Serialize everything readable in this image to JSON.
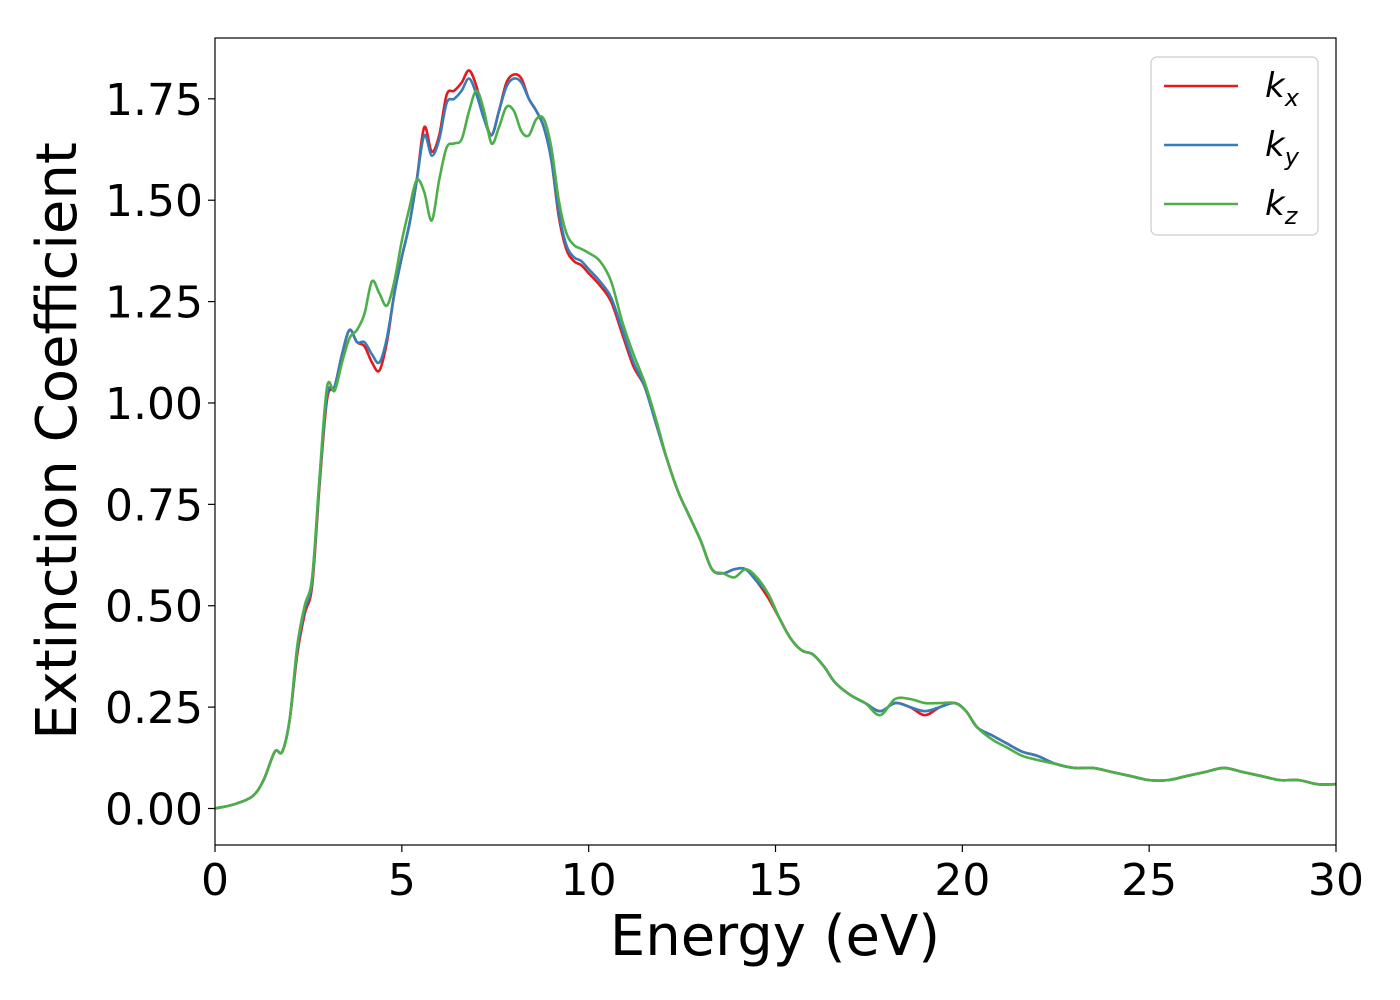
{
  "chart_data": {
    "type": "line",
    "title": "",
    "xlabel": "Energy (eV)",
    "ylabel": "Extinction Coefficient",
    "xlim": [
      0,
      30
    ],
    "ylim": [
      -0.09,
      1.9
    ],
    "xticks": [
      0,
      5,
      10,
      15,
      20,
      25,
      30
    ],
    "xtick_labels": [
      "0",
      "5",
      "10",
      "15",
      "20",
      "25",
      "30"
    ],
    "yticks": [
      0.0,
      0.25,
      0.5,
      0.75,
      1.0,
      1.25,
      1.5,
      1.75
    ],
    "ytick_labels": [
      "0.00",
      "0.25",
      "0.50",
      "0.75",
      "1.00",
      "1.25",
      "1.50",
      "1.75"
    ],
    "grid": false,
    "legend_position": "top-right",
    "series": [
      {
        "name": "k_x",
        "legend_base": "k",
        "legend_sub": "x",
        "color": "#e41a1c",
        "points": [
          [
            0,
            0.0
          ],
          [
            0.5,
            0.01
          ],
          [
            1.0,
            0.03
          ],
          [
            1.3,
            0.07
          ],
          [
            1.6,
            0.14
          ],
          [
            1.8,
            0.14
          ],
          [
            2.0,
            0.22
          ],
          [
            2.2,
            0.38
          ],
          [
            2.4,
            0.48
          ],
          [
            2.6,
            0.55
          ],
          [
            2.8,
            0.8
          ],
          [
            3.0,
            1.01
          ],
          [
            3.2,
            1.04
          ],
          [
            3.4,
            1.12
          ],
          [
            3.6,
            1.18
          ],
          [
            3.8,
            1.15
          ],
          [
            4.0,
            1.14
          ],
          [
            4.2,
            1.1
          ],
          [
            4.4,
            1.08
          ],
          [
            4.6,
            1.15
          ],
          [
            4.8,
            1.27
          ],
          [
            5.0,
            1.36
          ],
          [
            5.2,
            1.44
          ],
          [
            5.4,
            1.55
          ],
          [
            5.6,
            1.68
          ],
          [
            5.8,
            1.62
          ],
          [
            6.0,
            1.66
          ],
          [
            6.2,
            1.76
          ],
          [
            6.4,
            1.77
          ],
          [
            6.6,
            1.79
          ],
          [
            6.8,
            1.82
          ],
          [
            7.0,
            1.78
          ],
          [
            7.2,
            1.71
          ],
          [
            7.4,
            1.66
          ],
          [
            7.6,
            1.72
          ],
          [
            7.8,
            1.79
          ],
          [
            8.0,
            1.81
          ],
          [
            8.2,
            1.8
          ],
          [
            8.4,
            1.75
          ],
          [
            8.6,
            1.72
          ],
          [
            8.8,
            1.68
          ],
          [
            9.0,
            1.6
          ],
          [
            9.2,
            1.46
          ],
          [
            9.4,
            1.38
          ],
          [
            9.6,
            1.35
          ],
          [
            9.8,
            1.34
          ],
          [
            10.0,
            1.32
          ],
          [
            10.3,
            1.29
          ],
          [
            10.6,
            1.25
          ],
          [
            10.9,
            1.17
          ],
          [
            11.2,
            1.09
          ],
          [
            11.5,
            1.04
          ],
          [
            11.8,
            0.95
          ],
          [
            12.1,
            0.86
          ],
          [
            12.4,
            0.78
          ],
          [
            12.7,
            0.72
          ],
          [
            13.0,
            0.66
          ],
          [
            13.3,
            0.59
          ],
          [
            13.6,
            0.58
          ],
          [
            13.9,
            0.59
          ],
          [
            14.2,
            0.59
          ],
          [
            14.5,
            0.56
          ],
          [
            14.8,
            0.52
          ],
          [
            15.1,
            0.47
          ],
          [
            15.4,
            0.42
          ],
          [
            15.7,
            0.39
          ],
          [
            16.0,
            0.38
          ],
          [
            16.3,
            0.35
          ],
          [
            16.6,
            0.31
          ],
          [
            17.0,
            0.28
          ],
          [
            17.4,
            0.26
          ],
          [
            17.8,
            0.24
          ],
          [
            18.2,
            0.26
          ],
          [
            18.6,
            0.25
          ],
          [
            19.0,
            0.23
          ],
          [
            19.4,
            0.25
          ],
          [
            19.8,
            0.26
          ],
          [
            20.1,
            0.24
          ],
          [
            20.4,
            0.2
          ],
          [
            20.8,
            0.18
          ],
          [
            21.2,
            0.16
          ],
          [
            21.6,
            0.14
          ],
          [
            22.0,
            0.13
          ],
          [
            22.5,
            0.11
          ],
          [
            23.0,
            0.1
          ],
          [
            23.5,
            0.1
          ],
          [
            24.0,
            0.09
          ],
          [
            24.5,
            0.08
          ],
          [
            25.0,
            0.07
          ],
          [
            25.5,
            0.07
          ],
          [
            26.0,
            0.08
          ],
          [
            26.5,
            0.09
          ],
          [
            27.0,
            0.1
          ],
          [
            27.5,
            0.09
          ],
          [
            28.0,
            0.08
          ],
          [
            28.5,
            0.07
          ],
          [
            29.0,
            0.07
          ],
          [
            29.5,
            0.06
          ],
          [
            30.0,
            0.06
          ]
        ]
      },
      {
        "name": "k_y",
        "legend_base": "k",
        "legend_sub": "y",
        "color": "#377eb8",
        "points": [
          [
            0,
            0.0
          ],
          [
            0.5,
            0.01
          ],
          [
            1.0,
            0.03
          ],
          [
            1.3,
            0.07
          ],
          [
            1.6,
            0.14
          ],
          [
            1.8,
            0.14
          ],
          [
            2.0,
            0.22
          ],
          [
            2.2,
            0.39
          ],
          [
            2.4,
            0.49
          ],
          [
            2.6,
            0.56
          ],
          [
            2.8,
            0.81
          ],
          [
            3.0,
            1.02
          ],
          [
            3.2,
            1.04
          ],
          [
            3.4,
            1.12
          ],
          [
            3.6,
            1.18
          ],
          [
            3.8,
            1.15
          ],
          [
            4.0,
            1.15
          ],
          [
            4.2,
            1.12
          ],
          [
            4.4,
            1.1
          ],
          [
            4.6,
            1.16
          ],
          [
            4.8,
            1.27
          ],
          [
            5.0,
            1.36
          ],
          [
            5.2,
            1.44
          ],
          [
            5.4,
            1.55
          ],
          [
            5.6,
            1.66
          ],
          [
            5.8,
            1.61
          ],
          [
            6.0,
            1.65
          ],
          [
            6.2,
            1.74
          ],
          [
            6.4,
            1.75
          ],
          [
            6.6,
            1.77
          ],
          [
            6.8,
            1.8
          ],
          [
            7.0,
            1.76
          ],
          [
            7.2,
            1.7
          ],
          [
            7.4,
            1.66
          ],
          [
            7.6,
            1.72
          ],
          [
            7.8,
            1.78
          ],
          [
            8.0,
            1.8
          ],
          [
            8.2,
            1.79
          ],
          [
            8.4,
            1.75
          ],
          [
            8.6,
            1.72
          ],
          [
            8.8,
            1.68
          ],
          [
            9.0,
            1.6
          ],
          [
            9.2,
            1.47
          ],
          [
            9.4,
            1.39
          ],
          [
            9.6,
            1.36
          ],
          [
            9.8,
            1.35
          ],
          [
            10.0,
            1.33
          ],
          [
            10.3,
            1.3
          ],
          [
            10.6,
            1.26
          ],
          [
            10.9,
            1.18
          ],
          [
            11.2,
            1.1
          ],
          [
            11.5,
            1.04
          ],
          [
            11.8,
            0.95
          ],
          [
            12.1,
            0.86
          ],
          [
            12.4,
            0.78
          ],
          [
            12.7,
            0.72
          ],
          [
            13.0,
            0.66
          ],
          [
            13.3,
            0.59
          ],
          [
            13.6,
            0.58
          ],
          [
            13.9,
            0.59
          ],
          [
            14.2,
            0.59
          ],
          [
            14.5,
            0.56
          ],
          [
            14.8,
            0.53
          ],
          [
            15.1,
            0.47
          ],
          [
            15.4,
            0.42
          ],
          [
            15.7,
            0.39
          ],
          [
            16.0,
            0.38
          ],
          [
            16.3,
            0.35
          ],
          [
            16.6,
            0.31
          ],
          [
            17.0,
            0.28
          ],
          [
            17.4,
            0.26
          ],
          [
            17.8,
            0.24
          ],
          [
            18.2,
            0.26
          ],
          [
            18.6,
            0.25
          ],
          [
            19.0,
            0.24
          ],
          [
            19.4,
            0.25
          ],
          [
            19.8,
            0.26
          ],
          [
            20.1,
            0.24
          ],
          [
            20.4,
            0.2
          ],
          [
            20.8,
            0.18
          ],
          [
            21.2,
            0.16
          ],
          [
            21.6,
            0.14
          ],
          [
            22.0,
            0.13
          ],
          [
            22.5,
            0.11
          ],
          [
            23.0,
            0.1
          ],
          [
            23.5,
            0.1
          ],
          [
            24.0,
            0.09
          ],
          [
            24.5,
            0.08
          ],
          [
            25.0,
            0.07
          ],
          [
            25.5,
            0.07
          ],
          [
            26.0,
            0.08
          ],
          [
            26.5,
            0.09
          ],
          [
            27.0,
            0.1
          ],
          [
            27.5,
            0.09
          ],
          [
            28.0,
            0.08
          ],
          [
            28.5,
            0.07
          ],
          [
            29.0,
            0.07
          ],
          [
            29.5,
            0.06
          ],
          [
            30.0,
            0.06
          ]
        ]
      },
      {
        "name": "k_z",
        "legend_base": "k",
        "legend_sub": "z",
        "color": "#4daf4a",
        "points": [
          [
            0,
            0.0
          ],
          [
            0.5,
            0.01
          ],
          [
            1.0,
            0.03
          ],
          [
            1.3,
            0.07
          ],
          [
            1.6,
            0.14
          ],
          [
            1.8,
            0.14
          ],
          [
            2.0,
            0.22
          ],
          [
            2.2,
            0.4
          ],
          [
            2.4,
            0.5
          ],
          [
            2.6,
            0.57
          ],
          [
            2.8,
            0.82
          ],
          [
            3.0,
            1.04
          ],
          [
            3.2,
            1.03
          ],
          [
            3.4,
            1.1
          ],
          [
            3.6,
            1.16
          ],
          [
            3.8,
            1.18
          ],
          [
            4.0,
            1.22
          ],
          [
            4.2,
            1.3
          ],
          [
            4.4,
            1.27
          ],
          [
            4.6,
            1.24
          ],
          [
            4.8,
            1.3
          ],
          [
            5.0,
            1.4
          ],
          [
            5.2,
            1.48
          ],
          [
            5.4,
            1.55
          ],
          [
            5.6,
            1.52
          ],
          [
            5.8,
            1.45
          ],
          [
            6.0,
            1.55
          ],
          [
            6.2,
            1.63
          ],
          [
            6.4,
            1.64
          ],
          [
            6.6,
            1.65
          ],
          [
            6.8,
            1.72
          ],
          [
            7.0,
            1.77
          ],
          [
            7.2,
            1.72
          ],
          [
            7.4,
            1.64
          ],
          [
            7.6,
            1.68
          ],
          [
            7.8,
            1.73
          ],
          [
            8.0,
            1.72
          ],
          [
            8.2,
            1.67
          ],
          [
            8.4,
            1.66
          ],
          [
            8.6,
            1.7
          ],
          [
            8.8,
            1.7
          ],
          [
            9.0,
            1.63
          ],
          [
            9.2,
            1.5
          ],
          [
            9.4,
            1.42
          ],
          [
            9.6,
            1.39
          ],
          [
            9.8,
            1.38
          ],
          [
            10.0,
            1.37
          ],
          [
            10.3,
            1.35
          ],
          [
            10.6,
            1.3
          ],
          [
            10.9,
            1.2
          ],
          [
            11.2,
            1.12
          ],
          [
            11.5,
            1.05
          ],
          [
            11.8,
            0.96
          ],
          [
            12.1,
            0.86
          ],
          [
            12.4,
            0.78
          ],
          [
            12.7,
            0.72
          ],
          [
            13.0,
            0.66
          ],
          [
            13.3,
            0.59
          ],
          [
            13.6,
            0.58
          ],
          [
            13.9,
            0.57
          ],
          [
            14.2,
            0.59
          ],
          [
            14.5,
            0.57
          ],
          [
            14.8,
            0.53
          ],
          [
            15.1,
            0.47
          ],
          [
            15.4,
            0.42
          ],
          [
            15.7,
            0.39
          ],
          [
            16.0,
            0.38
          ],
          [
            16.3,
            0.35
          ],
          [
            16.6,
            0.31
          ],
          [
            17.0,
            0.28
          ],
          [
            17.4,
            0.26
          ],
          [
            17.8,
            0.23
          ],
          [
            18.2,
            0.27
          ],
          [
            18.6,
            0.27
          ],
          [
            19.0,
            0.26
          ],
          [
            19.4,
            0.26
          ],
          [
            19.8,
            0.26
          ],
          [
            20.1,
            0.24
          ],
          [
            20.4,
            0.2
          ],
          [
            20.8,
            0.17
          ],
          [
            21.2,
            0.15
          ],
          [
            21.6,
            0.13
          ],
          [
            22.0,
            0.12
          ],
          [
            22.5,
            0.11
          ],
          [
            23.0,
            0.1
          ],
          [
            23.5,
            0.1
          ],
          [
            24.0,
            0.09
          ],
          [
            24.5,
            0.08
          ],
          [
            25.0,
            0.07
          ],
          [
            25.5,
            0.07
          ],
          [
            26.0,
            0.08
          ],
          [
            26.5,
            0.09
          ],
          [
            27.0,
            0.1
          ],
          [
            27.5,
            0.09
          ],
          [
            28.0,
            0.08
          ],
          [
            28.5,
            0.07
          ],
          [
            29.0,
            0.07
          ],
          [
            29.5,
            0.06
          ],
          [
            30.0,
            0.06
          ]
        ]
      }
    ]
  }
}
